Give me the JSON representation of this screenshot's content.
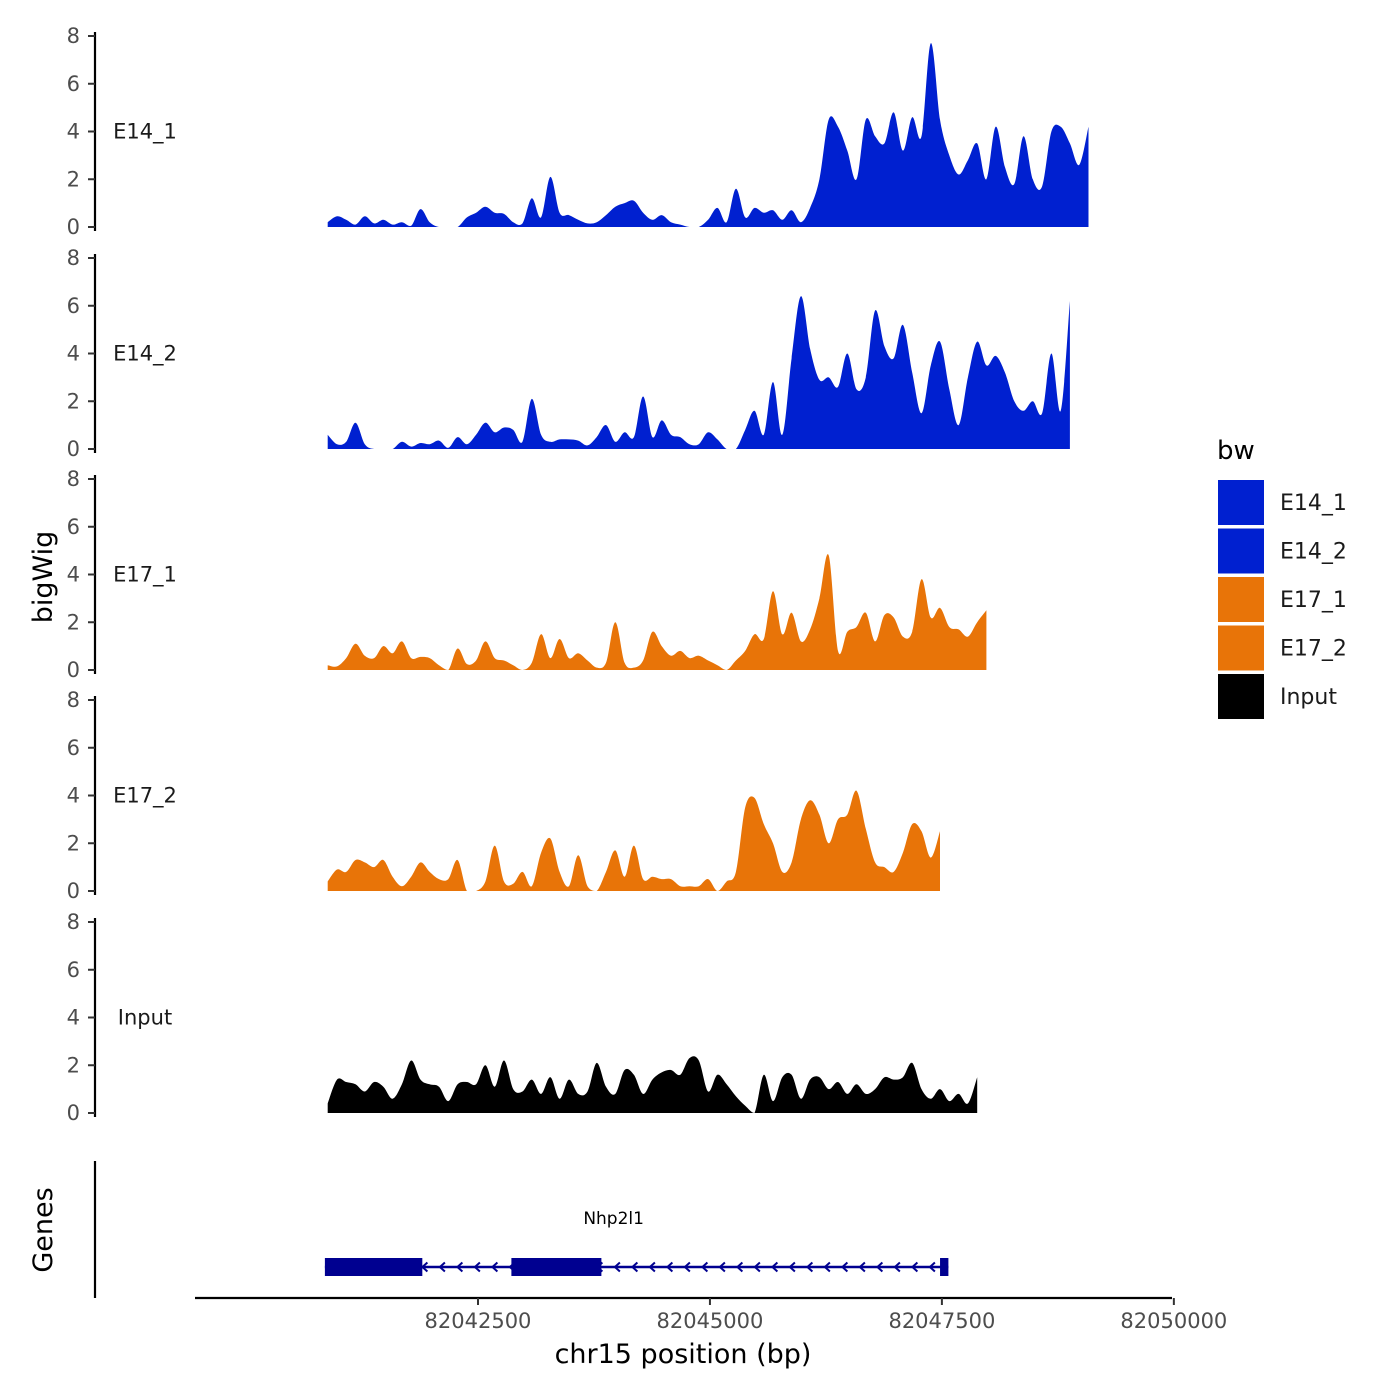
{
  "chart_data": {
    "type": "area",
    "title": "",
    "xlabel": "chr15 position (bp)",
    "ylabel": "bigWig",
    "genes_panel_label": "Genes",
    "xlim": [
      82039450,
      82049980
    ],
    "x_ticks": [
      82042500,
      82045000,
      82047500,
      82050000
    ],
    "x_tick_labels": [
      "82042500",
      "82045000",
      "82047500",
      "82050000"
    ],
    "ylim": [
      0,
      8
    ],
    "y_ticks": [
      0,
      2,
      4,
      6,
      8
    ],
    "y_tick_labels": [
      "0",
      "2",
      "4",
      "6",
      "8"
    ],
    "grid": false,
    "legend": {
      "title": "bw",
      "position": "right",
      "entries": [
        {
          "label": "E14_1",
          "color": "#0020D0"
        },
        {
          "label": "E14_2",
          "color": "#0020D0"
        },
        {
          "label": "E17_1",
          "color": "#E87408"
        },
        {
          "label": "E17_2",
          "color": "#E87408"
        },
        {
          "label": "Input",
          "color": "#000000"
        }
      ]
    },
    "x_start": 82040880,
    "x_step": 100,
    "series": [
      {
        "name": "E14_1",
        "color": "#0020D0",
        "values": [
          0.2,
          0.45,
          0.3,
          0.1,
          0.45,
          0.15,
          0.3,
          0.1,
          0.2,
          0.05,
          0.75,
          0.2,
          0,
          0,
          0,
          0.4,
          0.6,
          0.85,
          0.6,
          0.55,
          0.2,
          0.15,
          1.2,
          0.4,
          2.1,
          0.6,
          0.5,
          0.3,
          0.15,
          0.2,
          0.5,
          0.85,
          1.0,
          1.1,
          0.6,
          0.3,
          0.5,
          0.2,
          0.1,
          0,
          0,
          0.3,
          0.8,
          0.2,
          1.6,
          0.4,
          0.8,
          0.6,
          0.7,
          0.3,
          0.7,
          0.2,
          0.8,
          2.0,
          4.5,
          4.2,
          3.2,
          2.0,
          4.5,
          3.8,
          3.5,
          4.8,
          3.2,
          4.6,
          3.8,
          7.7,
          4.5,
          3.0,
          2.2,
          2.8,
          3.5,
          2.0,
          4.2,
          2.5,
          1.8,
          3.8,
          2.0,
          1.7,
          4.0,
          4.2,
          3.5,
          2.6,
          4.2
        ]
      },
      {
        "name": "E14_2",
        "color": "#0020D0",
        "values": [
          0.6,
          0.2,
          0.3,
          1.1,
          0.2,
          0,
          0,
          0,
          0.3,
          0.1,
          0.25,
          0.2,
          0.35,
          0.05,
          0.5,
          0.2,
          0.6,
          1.1,
          0.7,
          0.9,
          0.8,
          0.3,
          2.1,
          0.6,
          0.3,
          0.4,
          0.4,
          0.35,
          0.15,
          0.5,
          1.0,
          0.3,
          0.7,
          0.5,
          2.2,
          0.5,
          1.2,
          0.6,
          0.5,
          0.2,
          0.2,
          0.7,
          0.4,
          0,
          0,
          0.8,
          1.6,
          0.6,
          2.8,
          0.6,
          3.8,
          6.4,
          4.2,
          2.9,
          3.0,
          2.6,
          4.0,
          2.5,
          3.0,
          5.8,
          4.3,
          3.8,
          5.2,
          3.2,
          1.5,
          3.5,
          4.5,
          2.5,
          1.0,
          3.0,
          4.5,
          3.5,
          3.9,
          3.2,
          2.0,
          1.6,
          2.0,
          1.5,
          4.0,
          1.6,
          6.2
        ]
      },
      {
        "name": "E17_1",
        "color": "#E87408",
        "values": [
          0.2,
          0.15,
          0.5,
          1.1,
          0.6,
          0.5,
          1.0,
          0.7,
          1.2,
          0.5,
          0.55,
          0.5,
          0.2,
          0,
          0.9,
          0.25,
          0.4,
          1.2,
          0.5,
          0.4,
          0.2,
          0,
          0.3,
          1.5,
          0.5,
          1.3,
          0.5,
          0.7,
          0.4,
          0.1,
          0.3,
          2.0,
          0.3,
          0.1,
          0.4,
          1.6,
          1.0,
          0.6,
          0.8,
          0.5,
          0.6,
          0.4,
          0.2,
          0,
          0.4,
          0.8,
          1.5,
          1.3,
          3.3,
          1.5,
          2.4,
          1.2,
          1.7,
          3.0,
          4.8,
          0.8,
          1.6,
          1.8,
          2.4,
          1.2,
          2.3,
          2.2,
          1.4,
          1.6,
          3.8,
          2.2,
          2.6,
          1.8,
          1.7,
          1.4,
          2.0,
          2.5
        ]
      },
      {
        "name": "E17_2",
        "color": "#E87408",
        "values": [
          0.4,
          0.9,
          0.8,
          1.3,
          1.2,
          1.0,
          1.3,
          0.6,
          0.2,
          0.6,
          1.2,
          0.8,
          0.5,
          0.5,
          1.3,
          0,
          0,
          0.4,
          1.9,
          0.4,
          0.3,
          0.8,
          0.2,
          1.6,
          2.2,
          0.8,
          0.2,
          1.5,
          0.2,
          0,
          0.8,
          1.7,
          0.6,
          1.9,
          0.5,
          0.6,
          0.5,
          0.5,
          0.2,
          0.2,
          0.2,
          0.5,
          0,
          0.4,
          0.8,
          3.5,
          3.9,
          2.8,
          2.0,
          0.8,
          1.2,
          3.0,
          3.8,
          3.2,
          2.0,
          3.0,
          3.2,
          4.2,
          2.6,
          1.2,
          1.0,
          0.8,
          1.6,
          2.8,
          2.5,
          1.4,
          2.5
        ]
      },
      {
        "name": "Input",
        "color": "#000000",
        "values": [
          0.4,
          1.4,
          1.3,
          1.2,
          0.9,
          1.3,
          1.1,
          0.6,
          1.2,
          2.2,
          1.4,
          1.2,
          1.1,
          0.5,
          1.2,
          1.3,
          1.2,
          2.0,
          1.1,
          2.2,
          1.0,
          0.9,
          1.4,
          0.8,
          1.5,
          0.6,
          1.4,
          0.8,
          0.9,
          2.1,
          1.1,
          0.8,
          1.8,
          1.6,
          0.8,
          1.4,
          1.7,
          1.8,
          1.6,
          2.3,
          2.2,
          0.9,
          1.6,
          1.2,
          0.7,
          0.3,
          0,
          1.6,
          0.5,
          1.5,
          1.6,
          0.6,
          1.4,
          1.5,
          1.0,
          1.3,
          0.8,
          1.2,
          0.8,
          1.0,
          1.5,
          1.4,
          1.5,
          2.1,
          1.0,
          0.6,
          1.0,
          0.5,
          0.8,
          0.4,
          1.5
        ]
      }
    ],
    "gene": {
      "name": "Nhp2l1",
      "strand": "-",
      "start": 82040850,
      "end": 82047570,
      "exons": [
        [
          82040850,
          82041900
        ],
        [
          82042860,
          82043830
        ],
        [
          82047480,
          82047570
        ]
      ],
      "color": "#000090"
    }
  }
}
